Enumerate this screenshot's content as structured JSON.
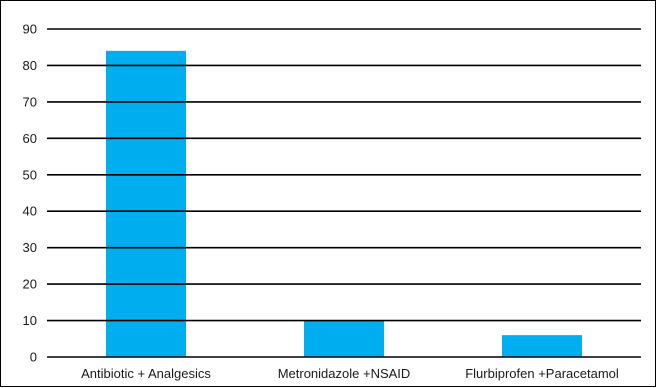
{
  "chart_data": {
    "type": "bar",
    "title": "",
    "xlabel": "",
    "ylabel": "",
    "categories": [
      "Antibiotic + Analgesics",
      "Metronidazole +NSAID",
      "Flurbiprofen +Paracetamol"
    ],
    "values": [
      84,
      10,
      6
    ],
    "ylim": [
      0,
      90
    ],
    "yticks": [
      0,
      10,
      20,
      30,
      40,
      50,
      60,
      70,
      80,
      90
    ],
    "grid": true,
    "bar_color": "#00aeef",
    "grid_color": "#000000"
  }
}
